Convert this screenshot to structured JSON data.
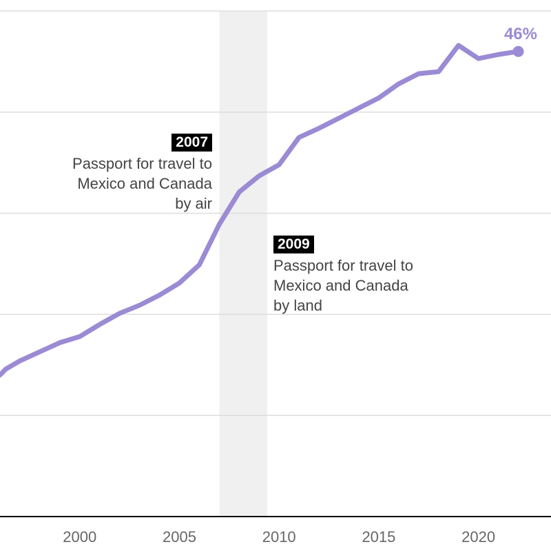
{
  "colors": {
    "line": "#9b8ad4",
    "shade": "#f0f0f0",
    "grid": "#dddddd",
    "axis": "#000000",
    "tick_text": "#666666"
  },
  "annotations": [
    {
      "year": "2007",
      "lines": [
        "Passport for travel to",
        "Mexico and Canada",
        "by air"
      ]
    },
    {
      "year": "2009",
      "lines": [
        "Passport for travel to",
        "Mexico and Canada",
        "by land"
      ]
    }
  ],
  "end_label": "46%",
  "chart_data": {
    "type": "line",
    "title": "",
    "xlabel": "",
    "ylabel": "",
    "x_ticks": [
      2000,
      2005,
      2010,
      2015,
      2020
    ],
    "x_tick_labels": [
      "2000",
      "2005",
      "2010",
      "2015",
      "2020"
    ],
    "xlim": [
      1996,
      2022.5
    ],
    "ylim": [
      0,
      50
    ],
    "gridlines_y": [
      10,
      20,
      30,
      40,
      50
    ],
    "shaded_x_range": [
      2007,
      2009.4
    ],
    "grid": true,
    "legend": "none",
    "series": [
      {
        "x": [
          1996,
          1996.3,
          1997,
          1998,
          1999,
          2000,
          2001,
          2002,
          2003,
          2004,
          2005,
          2006,
          2007,
          2008,
          2009,
          2010,
          2011,
          2012,
          2013,
          2014,
          2015,
          2016,
          2017,
          2018,
          2019,
          2020,
          2021,
          2022
        ],
        "y": [
          14,
          14.6,
          15.4,
          16.3,
          17.2,
          17.8,
          19.0,
          20.1,
          20.9,
          21.9,
          23.1,
          24.9,
          28.9,
          32.1,
          33.7,
          34.8,
          37.5,
          38.4,
          39.4,
          40.4,
          41.4,
          42.8,
          43.8,
          44.0,
          46.6,
          45.3,
          45.7,
          46.0
        ],
        "end_label": "46%"
      }
    ]
  }
}
